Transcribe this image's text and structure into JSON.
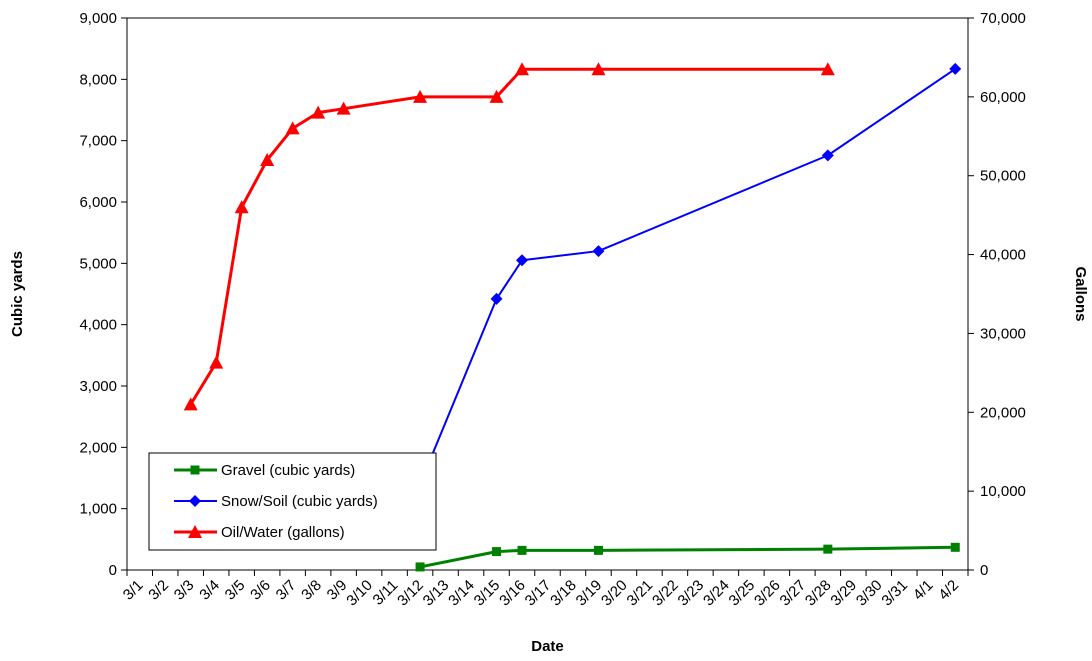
{
  "chart_data": {
    "type": "line",
    "title": "",
    "xlabel": "Date",
    "ylabel_left": "Cubic yards",
    "ylabel_right": "Gallons",
    "x_categories": [
      "3/1",
      "3/2",
      "3/3",
      "3/4",
      "3/5",
      "3/6",
      "3/7",
      "3/8",
      "3/9",
      "3/10",
      "3/11",
      "3/12",
      "3/13",
      "3/14",
      "3/15",
      "3/16",
      "3/17",
      "3/18",
      "3/19",
      "3/20",
      "3/21",
      "3/22",
      "3/23",
      "3/24",
      "3/25",
      "3/26",
      "3/27",
      "3/28",
      "3/29",
      "3/30",
      "3/31",
      "4/1",
      "4/2"
    ],
    "ylim_left": [
      0,
      9000
    ],
    "yticks_left": [
      "0",
      "1,000",
      "2,000",
      "3,000",
      "4,000",
      "5,000",
      "6,000",
      "7,000",
      "8,000",
      "9,000"
    ],
    "ylim_right": [
      0,
      70000
    ],
    "yticks_right": [
      "0",
      "10,000",
      "20,000",
      "30,000",
      "40,000",
      "50,000",
      "60,000",
      "70,000"
    ],
    "grid": false,
    "legend_position": "bottom-left",
    "series": [
      {
        "name": "Gravel (cubic yards)",
        "axis": "left",
        "color": "#008000",
        "marker": "square",
        "points": [
          [
            "3/12",
            50
          ],
          [
            "3/15",
            300
          ],
          [
            "3/16",
            320
          ],
          [
            "3/19",
            320
          ],
          [
            "3/28",
            340
          ],
          [
            "4/2",
            370
          ]
        ]
      },
      {
        "name": "Snow/Soil (cubic yards)",
        "axis": "left",
        "color": "#0000ff",
        "marker": "diamond",
        "points": [
          [
            "3/12",
            1400
          ],
          [
            "3/15",
            4420
          ],
          [
            "3/16",
            5050
          ],
          [
            "3/19",
            5200
          ],
          [
            "3/28",
            6760
          ],
          [
            "4/2",
            8170
          ]
        ]
      },
      {
        "name": "Oil/Water (gallons)",
        "axis": "right",
        "color": "#ff0000",
        "marker": "triangle",
        "points": [
          [
            "3/3",
            21000
          ],
          [
            "3/4",
            26300
          ],
          [
            "3/5",
            46000
          ],
          [
            "3/6",
            52000
          ],
          [
            "3/7",
            56000
          ],
          [
            "3/8",
            58000
          ],
          [
            "3/9",
            58500
          ],
          [
            "3/12",
            60000
          ],
          [
            "3/15",
            60000
          ],
          [
            "3/16",
            63500
          ],
          [
            "3/19",
            63500
          ],
          [
            "3/28",
            63500
          ]
        ]
      }
    ]
  }
}
